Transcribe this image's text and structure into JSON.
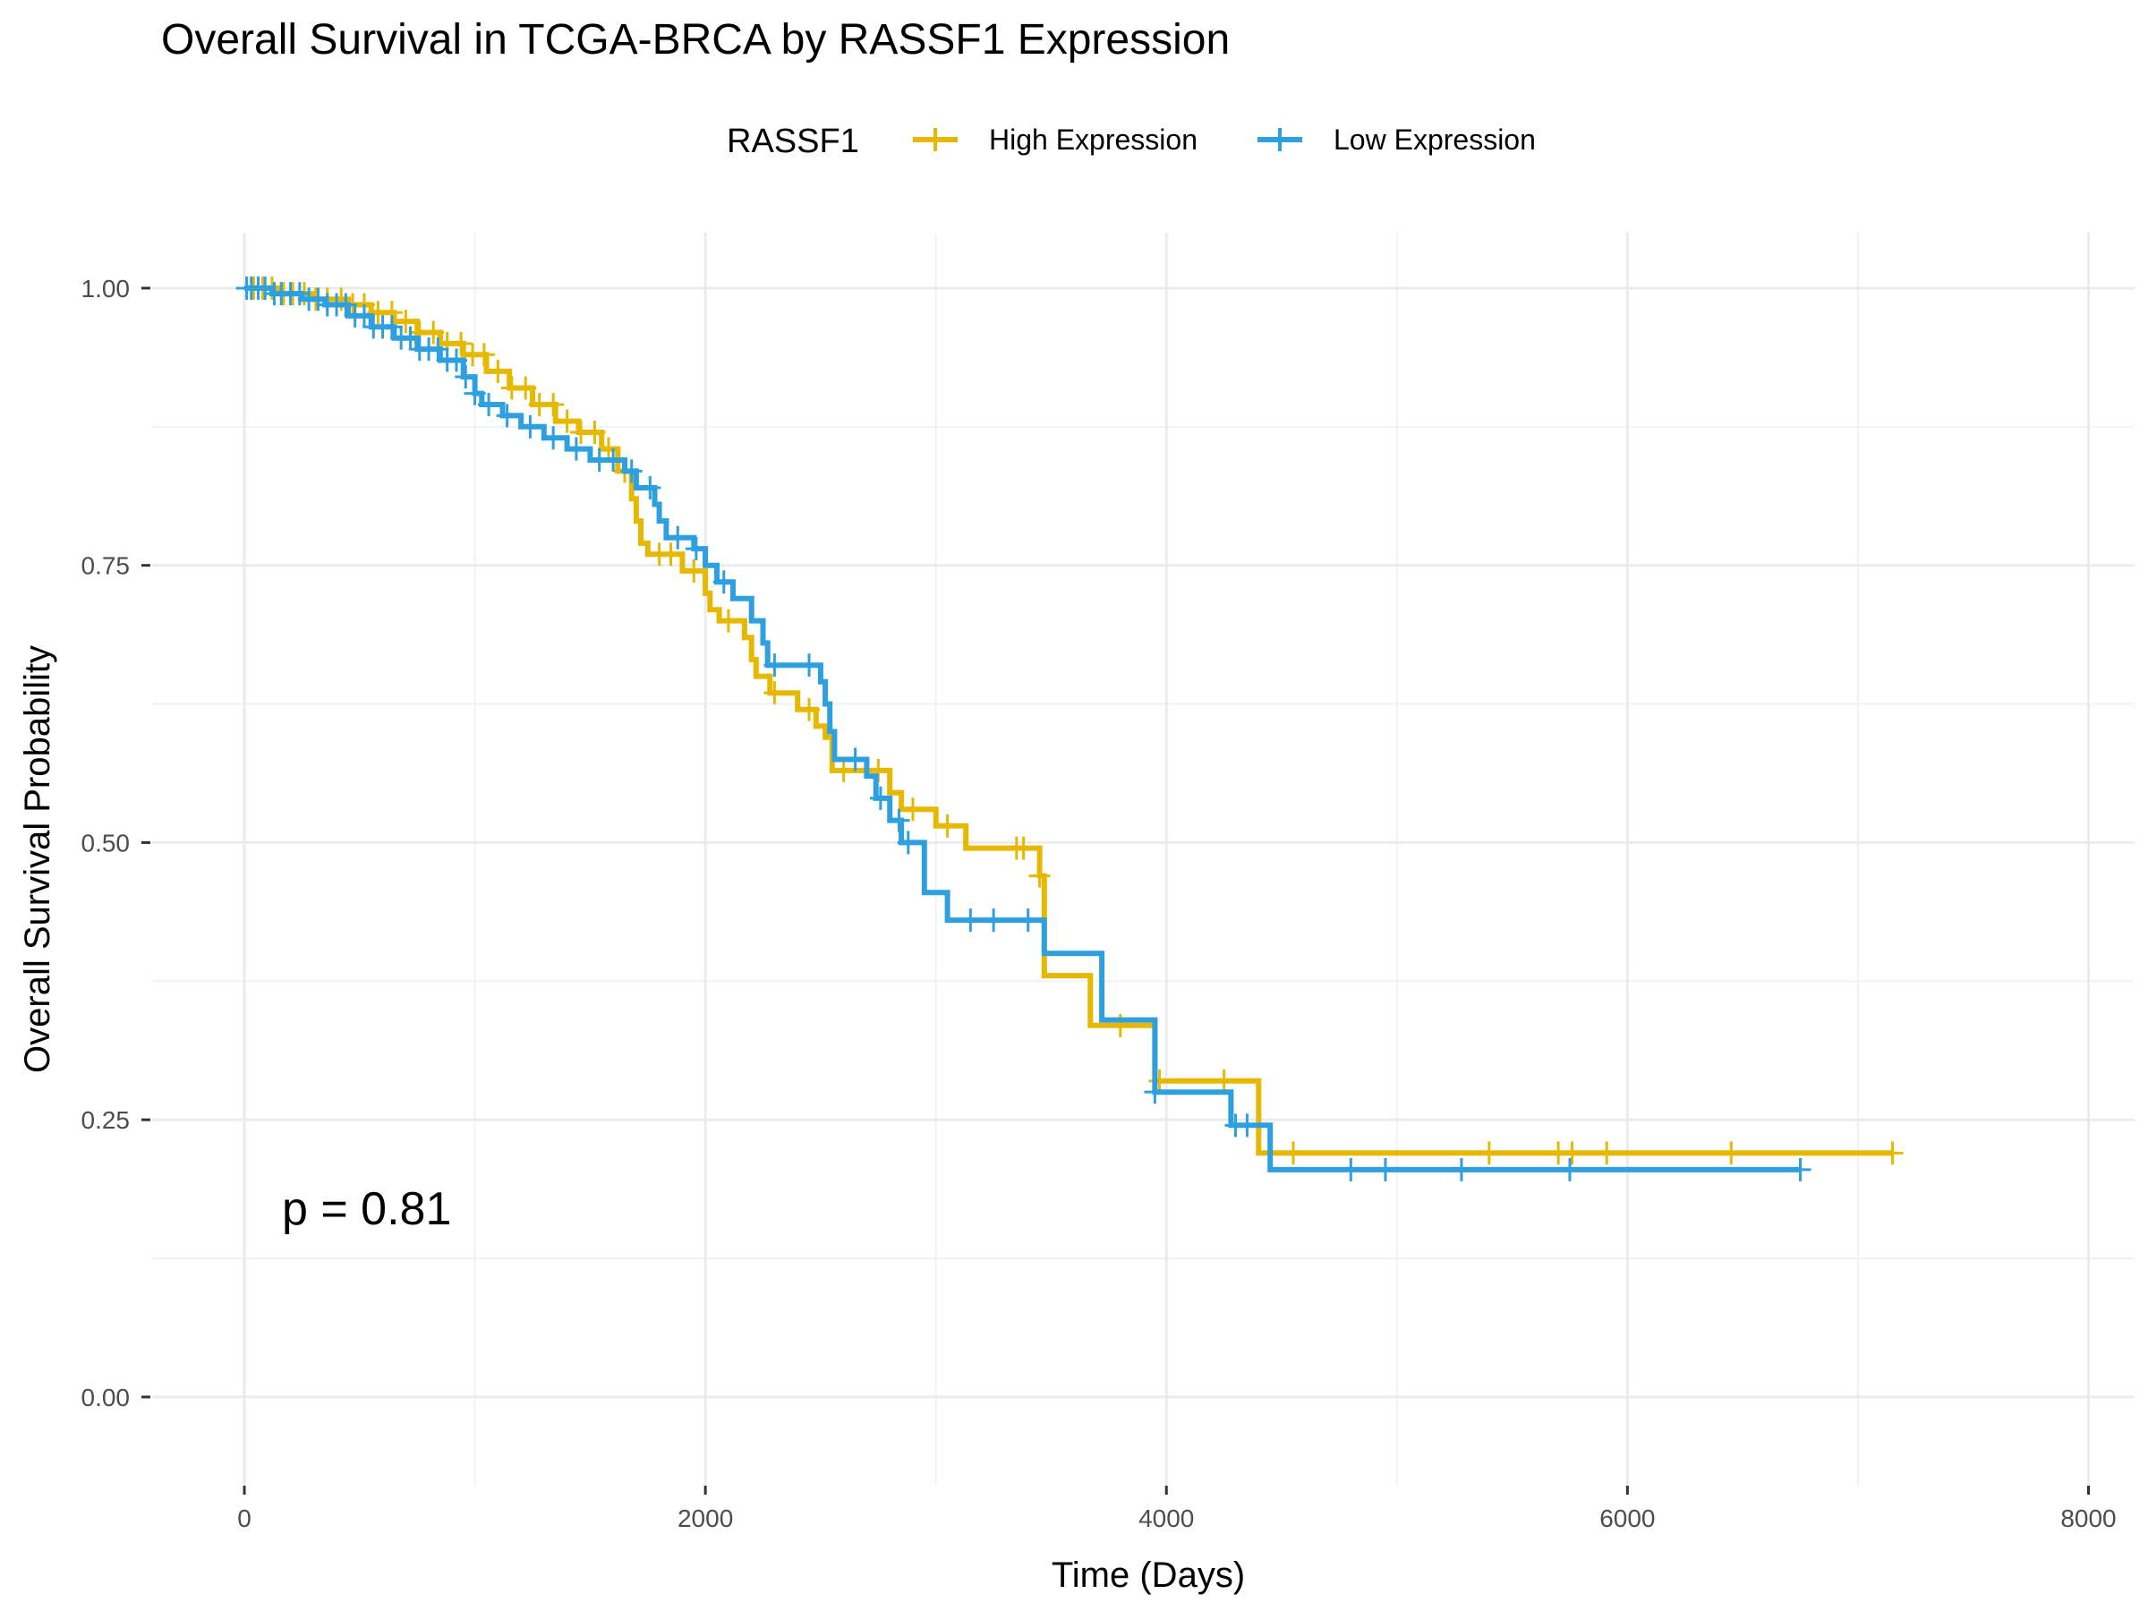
{
  "chart_data": {
    "type": "line",
    "title": "Overall Survival in TCGA-BRCA by RASSF1 Expression",
    "xlabel": "Time (Days)",
    "ylabel": "Overall Survival Probability",
    "xlim": [
      -400,
      8200
    ],
    "ylim": [
      -0.08,
      1.05
    ],
    "x_ticks": [
      0,
      2000,
      4000,
      6000,
      8000
    ],
    "x_tick_labels": [
      "0",
      "2000",
      "4000",
      "6000",
      "8000"
    ],
    "y_ticks": [
      0,
      0.25,
      0.5,
      0.75,
      1.0
    ],
    "y_tick_labels": [
      "0.00",
      "0.25",
      "0.50",
      "0.75",
      "1.00"
    ],
    "grid": true,
    "legend": {
      "title": "RASSF1",
      "position": "top"
    },
    "annotation": "p = 0.81",
    "series": [
      {
        "name": "High Expression",
        "color": "#E7B800",
        "steps": [
          [
            0,
            1.0
          ],
          [
            150,
            0.995
          ],
          [
            300,
            0.99
          ],
          [
            450,
            0.985
          ],
          [
            550,
            0.978
          ],
          [
            650,
            0.97
          ],
          [
            750,
            0.96
          ],
          [
            850,
            0.95
          ],
          [
            950,
            0.94
          ],
          [
            1050,
            0.925
          ],
          [
            1150,
            0.91
          ],
          [
            1250,
            0.895
          ],
          [
            1350,
            0.88
          ],
          [
            1450,
            0.87
          ],
          [
            1550,
            0.855
          ],
          [
            1620,
            0.835
          ],
          [
            1680,
            0.81
          ],
          [
            1700,
            0.79
          ],
          [
            1720,
            0.77
          ],
          [
            1750,
            0.76
          ],
          [
            1900,
            0.745
          ],
          [
            2000,
            0.725
          ],
          [
            2020,
            0.71
          ],
          [
            2060,
            0.7
          ],
          [
            2170,
            0.685
          ],
          [
            2200,
            0.665
          ],
          [
            2220,
            0.65
          ],
          [
            2280,
            0.635
          ],
          [
            2400,
            0.62
          ],
          [
            2480,
            0.605
          ],
          [
            2520,
            0.595
          ],
          [
            2550,
            0.565
          ],
          [
            2800,
            0.545
          ],
          [
            2850,
            0.53
          ],
          [
            3000,
            0.515
          ],
          [
            3130,
            0.495
          ],
          [
            3450,
            0.47
          ],
          [
            3470,
            0.38
          ],
          [
            3670,
            0.335
          ],
          [
            3950,
            0.285
          ],
          [
            4400,
            0.22
          ],
          [
            7150,
            0.22
          ]
        ],
        "censor_x": [
          40,
          80,
          120,
          170,
          210,
          260,
          310,
          360,
          420,
          470,
          520,
          580,
          640,
          700,
          760,
          820,
          880,
          940,
          990,
          1040,
          1100,
          1160,
          1220,
          1280,
          1340,
          1400,
          1460,
          1520,
          1580,
          1650,
          1800,
          1850,
          1950,
          2100,
          2300,
          2450,
          2600,
          2750,
          2900,
          3050,
          3350,
          3380,
          3450,
          3800,
          3970,
          4250,
          4550,
          5400,
          5700,
          5760,
          5910,
          6450,
          7150
        ]
      },
      {
        "name": "Low Expression",
        "color": "#2E9FDF",
        "steps": [
          [
            0,
            1.0
          ],
          [
            120,
            0.995
          ],
          [
            250,
            0.99
          ],
          [
            350,
            0.985
          ],
          [
            450,
            0.975
          ],
          [
            550,
            0.965
          ],
          [
            650,
            0.955
          ],
          [
            750,
            0.945
          ],
          [
            850,
            0.935
          ],
          [
            950,
            0.92
          ],
          [
            1000,
            0.905
          ],
          [
            1030,
            0.895
          ],
          [
            1120,
            0.885
          ],
          [
            1200,
            0.875
          ],
          [
            1300,
            0.865
          ],
          [
            1400,
            0.855
          ],
          [
            1500,
            0.845
          ],
          [
            1650,
            0.835
          ],
          [
            1700,
            0.82
          ],
          [
            1780,
            0.805
          ],
          [
            1800,
            0.79
          ],
          [
            1830,
            0.775
          ],
          [
            1950,
            0.765
          ],
          [
            2000,
            0.75
          ],
          [
            2050,
            0.735
          ],
          [
            2120,
            0.72
          ],
          [
            2200,
            0.7
          ],
          [
            2250,
            0.68
          ],
          [
            2270,
            0.66
          ],
          [
            2500,
            0.645
          ],
          [
            2520,
            0.625
          ],
          [
            2540,
            0.6
          ],
          [
            2560,
            0.575
          ],
          [
            2700,
            0.56
          ],
          [
            2740,
            0.54
          ],
          [
            2800,
            0.52
          ],
          [
            2850,
            0.5
          ],
          [
            2950,
            0.455
          ],
          [
            3050,
            0.43
          ],
          [
            3470,
            0.4
          ],
          [
            3720,
            0.34
          ],
          [
            3950,
            0.275
          ],
          [
            4280,
            0.245
          ],
          [
            4450,
            0.205
          ],
          [
            6750,
            0.205
          ]
        ],
        "censor_x": [
          10,
          30,
          60,
          90,
          130,
          160,
          200,
          240,
          280,
          320,
          360,
          400,
          440,
          480,
          520,
          560,
          600,
          640,
          680,
          720,
          760,
          800,
          840,
          880,
          920,
          960,
          1000,
          1060,
          1140,
          1240,
          1340,
          1440,
          1540,
          1600,
          1680,
          1760,
          1880,
          1960,
          2080,
          2300,
          2450,
          2650,
          2760,
          2840,
          2880,
          3150,
          3250,
          3400,
          3950,
          4300,
          4350,
          4800,
          4950,
          5280,
          5750,
          6750
        ]
      }
    ]
  }
}
